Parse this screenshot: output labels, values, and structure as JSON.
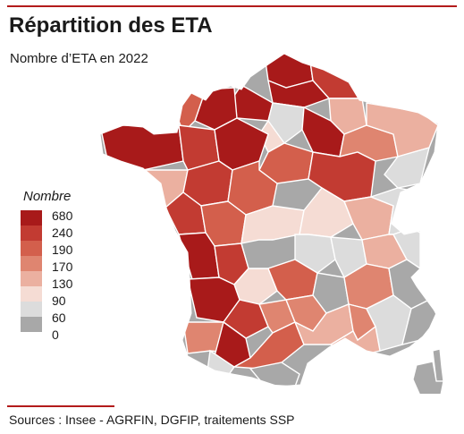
{
  "title": "Répartition des ETA",
  "subtitle": "Nombre d’ETA en 2022",
  "legend": {
    "title": "Nombre",
    "items": [
      {
        "label": "680",
        "color": "#a81a1a"
      },
      {
        "label": "240",
        "color": "#c23b32"
      },
      {
        "label": "190",
        "color": "#d35f4c"
      },
      {
        "label": "170",
        "color": "#df8570"
      },
      {
        "label": "130",
        "color": "#ebb0a0"
      },
      {
        "label": "90",
        "color": "#f5dcd4"
      },
      {
        "label": "60",
        "color": "#dcdcdc"
      },
      {
        "label": "0",
        "color": "#a8a8a8"
      }
    ]
  },
  "source": "Sources : Insee - AGRFIN, DGFIP, traitements SSP",
  "colors": {
    "accent": "#b31b1b",
    "border": "#ffffff"
  }
}
